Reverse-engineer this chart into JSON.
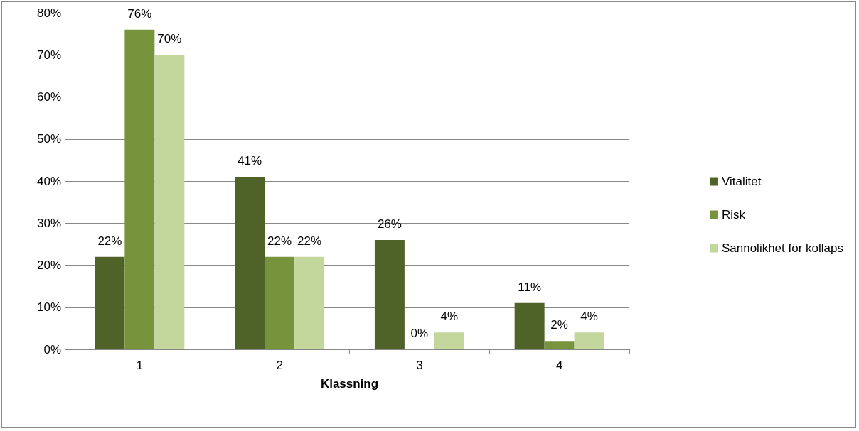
{
  "chart_data": {
    "type": "bar",
    "xlabel": "Klassning",
    "categories": [
      "1",
      "2",
      "3",
      "4"
    ],
    "series": [
      {
        "name": "Vitalitet",
        "color": "#4f6228",
        "values": [
          22,
          41,
          26,
          11
        ],
        "value_labels": [
          "22%",
          "41%",
          "26%",
          "11%"
        ]
      },
      {
        "name": "Risk",
        "color": "#77933c",
        "values": [
          76,
          22,
          0,
          2
        ],
        "value_labels": [
          "76%",
          "22%",
          "0%",
          "2%"
        ]
      },
      {
        "name": "Sannolikhet för kollaps",
        "color": "#c3d69b",
        "values": [
          70,
          22,
          4,
          4
        ],
        "value_labels": [
          "70%",
          "22%",
          "4%",
          "4%"
        ]
      }
    ],
    "ylim": [
      0,
      80
    ],
    "yticks": [
      {
        "value": 0,
        "label": "0%"
      },
      {
        "value": 10,
        "label": "10%"
      },
      {
        "value": 20,
        "label": "20%"
      },
      {
        "value": 30,
        "label": "30%"
      },
      {
        "value": 40,
        "label": "40%"
      },
      {
        "value": 50,
        "label": "50%"
      },
      {
        "value": 60,
        "label": "60%"
      },
      {
        "value": 70,
        "label": "70%"
      },
      {
        "value": 80,
        "label": "80%"
      }
    ],
    "grid": "y",
    "legend": "right"
  }
}
